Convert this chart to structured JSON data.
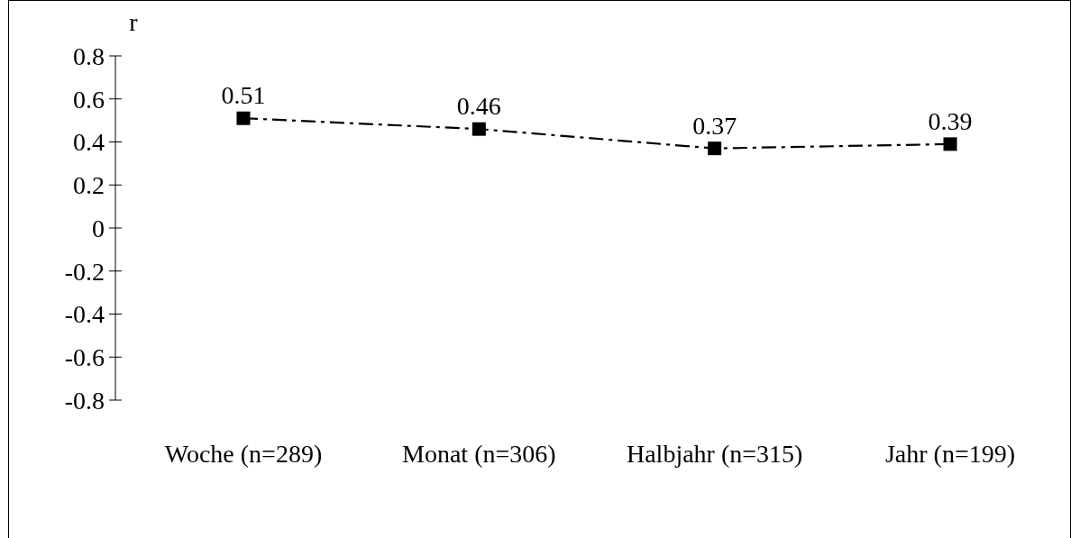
{
  "chart_data": {
    "type": "line",
    "ylabel": "r",
    "categories": [
      "Woche (n=289)",
      "Monat (n=306)",
      "Halbjahr (n=315)",
      "Jahr (n=199)"
    ],
    "series": [
      {
        "color": "#000000",
        "values": [
          0.51,
          0.46,
          0.37,
          0.39
        ]
      }
    ],
    "ylim": [
      -0.8,
      0.8
    ],
    "yticks": [
      -0.8,
      -0.6,
      -0.4,
      -0.2,
      0,
      0.2,
      0.4,
      0.6,
      0.8
    ],
    "data_labels": true,
    "marker": "square",
    "line_style": "dashed"
  }
}
